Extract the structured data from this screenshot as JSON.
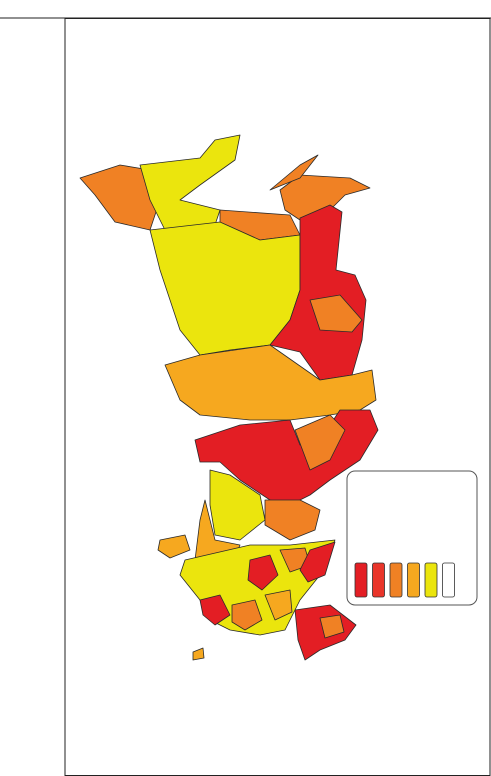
{
  "legend": {
    "colors": [
      "#e31e24",
      "#e9352a",
      "#f08124",
      "#f6a81f",
      "#ebe50d",
      "#ffffff"
    ]
  }
}
